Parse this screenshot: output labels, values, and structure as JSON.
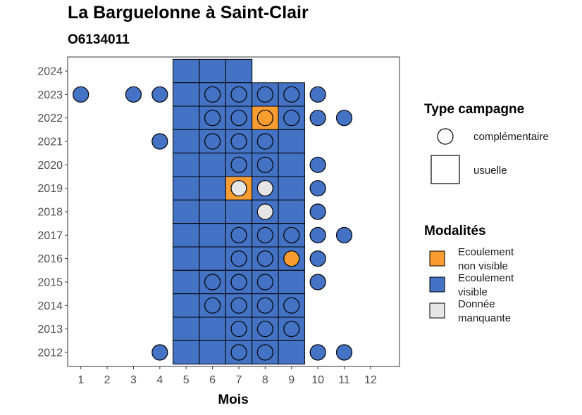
{
  "chart_data": {
    "type": "heatmap",
    "title": "La Barguelonne à Saint-Clair",
    "subtitle": "O6134011",
    "xlabel": "Mois",
    "ylabel": "",
    "x_ticks": [
      1,
      2,
      3,
      4,
      5,
      6,
      7,
      8,
      9,
      10,
      11,
      12
    ],
    "y_ticks": [
      2012,
      2013,
      2014,
      2015,
      2016,
      2017,
      2018,
      2019,
      2020,
      2021,
      2022,
      2023,
      2024
    ],
    "xlim": [
      0.5,
      13.1
    ],
    "ylim": [
      2011.4,
      2024.6
    ],
    "grid": false,
    "colors": {
      "Ecoulement non visible": "#F99D31",
      "Ecoulement visible": "#4472C4",
      "Donnée manquante": "#E6E6E6"
    },
    "legend_campaign": {
      "title": "Type campagne",
      "entries": [
        {
          "label": "complémentaire",
          "shape": "circle"
        },
        {
          "label": "usuelle",
          "shape": "square"
        }
      ]
    },
    "legend_modalities": {
      "title": "Modalités",
      "entries": [
        {
          "label_line1": "Ecoulement",
          "label_line2": "non visible",
          "key": "Ecoulement non visible"
        },
        {
          "label_line1": "Ecoulement",
          "label_line2": "visible",
          "key": "Ecoulement visible"
        },
        {
          "label_line1": "Donnée",
          "label_line2": "manquante",
          "key": "Donnée manquante"
        }
      ]
    },
    "usuelle": [
      {
        "year": 2024,
        "month": 5,
        "status": "Ecoulement visible"
      },
      {
        "year": 2024,
        "month": 6,
        "status": "Ecoulement visible"
      },
      {
        "year": 2024,
        "month": 7,
        "status": "Ecoulement visible"
      },
      {
        "year": 2023,
        "month": 5,
        "status": "Ecoulement visible"
      },
      {
        "year": 2023,
        "month": 6,
        "status": "Ecoulement visible"
      },
      {
        "year": 2023,
        "month": 7,
        "status": "Ecoulement visible"
      },
      {
        "year": 2023,
        "month": 8,
        "status": "Ecoulement visible"
      },
      {
        "year": 2023,
        "month": 9,
        "status": "Ecoulement visible"
      },
      {
        "year": 2022,
        "month": 5,
        "status": "Ecoulement visible"
      },
      {
        "year": 2022,
        "month": 6,
        "status": "Ecoulement visible"
      },
      {
        "year": 2022,
        "month": 7,
        "status": "Ecoulement visible"
      },
      {
        "year": 2022,
        "month": 8,
        "status": "Ecoulement non visible"
      },
      {
        "year": 2022,
        "month": 9,
        "status": "Ecoulement visible"
      },
      {
        "year": 2021,
        "month": 5,
        "status": "Ecoulement visible"
      },
      {
        "year": 2021,
        "month": 6,
        "status": "Ecoulement visible"
      },
      {
        "year": 2021,
        "month": 7,
        "status": "Ecoulement visible"
      },
      {
        "year": 2021,
        "month": 8,
        "status": "Ecoulement visible"
      },
      {
        "year": 2021,
        "month": 9,
        "status": "Ecoulement visible"
      },
      {
        "year": 2020,
        "month": 5,
        "status": "Ecoulement visible"
      },
      {
        "year": 2020,
        "month": 6,
        "status": "Ecoulement visible"
      },
      {
        "year": 2020,
        "month": 7,
        "status": "Ecoulement visible"
      },
      {
        "year": 2020,
        "month": 8,
        "status": "Ecoulement visible"
      },
      {
        "year": 2020,
        "month": 9,
        "status": "Ecoulement visible"
      },
      {
        "year": 2019,
        "month": 5,
        "status": "Ecoulement visible"
      },
      {
        "year": 2019,
        "month": 6,
        "status": "Ecoulement visible"
      },
      {
        "year": 2019,
        "month": 7,
        "status": "Ecoulement non visible"
      },
      {
        "year": 2019,
        "month": 8,
        "status": "Ecoulement visible"
      },
      {
        "year": 2019,
        "month": 9,
        "status": "Ecoulement visible"
      },
      {
        "year": 2018,
        "month": 5,
        "status": "Ecoulement visible"
      },
      {
        "year": 2018,
        "month": 6,
        "status": "Ecoulement visible"
      },
      {
        "year": 2018,
        "month": 7,
        "status": "Ecoulement visible"
      },
      {
        "year": 2018,
        "month": 8,
        "status": "Ecoulement visible"
      },
      {
        "year": 2018,
        "month": 9,
        "status": "Ecoulement visible"
      },
      {
        "year": 2017,
        "month": 5,
        "status": "Ecoulement visible"
      },
      {
        "year": 2017,
        "month": 6,
        "status": "Ecoulement visible"
      },
      {
        "year": 2017,
        "month": 7,
        "status": "Ecoulement visible"
      },
      {
        "year": 2017,
        "month": 8,
        "status": "Ecoulement visible"
      },
      {
        "year": 2017,
        "month": 9,
        "status": "Ecoulement visible"
      },
      {
        "year": 2016,
        "month": 5,
        "status": "Ecoulement visible"
      },
      {
        "year": 2016,
        "month": 6,
        "status": "Ecoulement visible"
      },
      {
        "year": 2016,
        "month": 7,
        "status": "Ecoulement visible"
      },
      {
        "year": 2016,
        "month": 8,
        "status": "Ecoulement visible"
      },
      {
        "year": 2016,
        "month": 9,
        "status": "Ecoulement visible"
      },
      {
        "year": 2015,
        "month": 5,
        "status": "Ecoulement visible"
      },
      {
        "year": 2015,
        "month": 6,
        "status": "Ecoulement visible"
      },
      {
        "year": 2015,
        "month": 7,
        "status": "Ecoulement visible"
      },
      {
        "year": 2015,
        "month": 8,
        "status": "Ecoulement visible"
      },
      {
        "year": 2015,
        "month": 9,
        "status": "Ecoulement visible"
      },
      {
        "year": 2014,
        "month": 5,
        "status": "Ecoulement visible"
      },
      {
        "year": 2014,
        "month": 6,
        "status": "Ecoulement visible"
      },
      {
        "year": 2014,
        "month": 7,
        "status": "Ecoulement visible"
      },
      {
        "year": 2014,
        "month": 8,
        "status": "Ecoulement visible"
      },
      {
        "year": 2014,
        "month": 9,
        "status": "Ecoulement visible"
      },
      {
        "year": 2013,
        "month": 5,
        "status": "Ecoulement visible"
      },
      {
        "year": 2013,
        "month": 6,
        "status": "Ecoulement visible"
      },
      {
        "year": 2013,
        "month": 7,
        "status": "Ecoulement visible"
      },
      {
        "year": 2013,
        "month": 8,
        "status": "Ecoulement visible"
      },
      {
        "year": 2013,
        "month": 9,
        "status": "Ecoulement visible"
      },
      {
        "year": 2012,
        "month": 5,
        "status": "Ecoulement visible"
      },
      {
        "year": 2012,
        "month": 6,
        "status": "Ecoulement visible"
      },
      {
        "year": 2012,
        "month": 7,
        "status": "Ecoulement visible"
      },
      {
        "year": 2012,
        "month": 8,
        "status": "Ecoulement visible"
      },
      {
        "year": 2012,
        "month": 9,
        "status": "Ecoulement visible"
      }
    ],
    "complementaire": [
      {
        "year": 2023,
        "month": 1,
        "status": "Ecoulement visible"
      },
      {
        "year": 2023,
        "month": 3,
        "status": "Ecoulement visible"
      },
      {
        "year": 2023,
        "month": 4,
        "status": "Ecoulement visible"
      },
      {
        "year": 2023,
        "month": 6,
        "status": "Ecoulement visible"
      },
      {
        "year": 2023,
        "month": 7,
        "status": "Ecoulement visible"
      },
      {
        "year": 2023,
        "month": 8,
        "status": "Ecoulement visible"
      },
      {
        "year": 2023,
        "month": 9,
        "status": "Ecoulement visible"
      },
      {
        "year": 2023,
        "month": 10,
        "status": "Ecoulement visible"
      },
      {
        "year": 2022,
        "month": 6,
        "status": "Ecoulement visible"
      },
      {
        "year": 2022,
        "month": 7,
        "status": "Ecoulement visible"
      },
      {
        "year": 2022,
        "month": 8,
        "status": "Ecoulement non visible"
      },
      {
        "year": 2022,
        "month": 9,
        "status": "Ecoulement visible"
      },
      {
        "year": 2022,
        "month": 10,
        "status": "Ecoulement visible"
      },
      {
        "year": 2022,
        "month": 11,
        "status": "Ecoulement visible"
      },
      {
        "year": 2021,
        "month": 4,
        "status": "Ecoulement visible"
      },
      {
        "year": 2021,
        "month": 6,
        "status": "Ecoulement visible"
      },
      {
        "year": 2021,
        "month": 7,
        "status": "Ecoulement visible"
      },
      {
        "year": 2021,
        "month": 8,
        "status": "Ecoulement visible"
      },
      {
        "year": 2020,
        "month": 7,
        "status": "Ecoulement visible"
      },
      {
        "year": 2020,
        "month": 8,
        "status": "Ecoulement visible"
      },
      {
        "year": 2020,
        "month": 10,
        "status": "Ecoulement visible"
      },
      {
        "year": 2019,
        "month": 7,
        "status": "Donnée manquante"
      },
      {
        "year": 2019,
        "month": 8,
        "status": "Donnée manquante"
      },
      {
        "year": 2019,
        "month": 10,
        "status": "Ecoulement visible"
      },
      {
        "year": 2018,
        "month": 8,
        "status": "Donnée manquante"
      },
      {
        "year": 2018,
        "month": 10,
        "status": "Ecoulement visible"
      },
      {
        "year": 2017,
        "month": 7,
        "status": "Ecoulement visible"
      },
      {
        "year": 2017,
        "month": 8,
        "status": "Ecoulement visible"
      },
      {
        "year": 2017,
        "month": 9,
        "status": "Ecoulement visible"
      },
      {
        "year": 2017,
        "month": 10,
        "status": "Ecoulement visible"
      },
      {
        "year": 2017,
        "month": 11,
        "status": "Ecoulement visible"
      },
      {
        "year": 2016,
        "month": 7,
        "status": "Ecoulement visible"
      },
      {
        "year": 2016,
        "month": 8,
        "status": "Ecoulement visible"
      },
      {
        "year": 2016,
        "month": 9,
        "status": "Ecoulement non visible"
      },
      {
        "year": 2016,
        "month": 10,
        "status": "Ecoulement visible"
      },
      {
        "year": 2015,
        "month": 6,
        "status": "Ecoulement visible"
      },
      {
        "year": 2015,
        "month": 7,
        "status": "Ecoulement visible"
      },
      {
        "year": 2015,
        "month": 8,
        "status": "Ecoulement visible"
      },
      {
        "year": 2015,
        "month": 10,
        "status": "Ecoulement visible"
      },
      {
        "year": 2014,
        "month": 6,
        "status": "Ecoulement visible"
      },
      {
        "year": 2014,
        "month": 7,
        "status": "Ecoulement visible"
      },
      {
        "year": 2014,
        "month": 8,
        "status": "Ecoulement visible"
      },
      {
        "year": 2014,
        "month": 9,
        "status": "Ecoulement visible"
      },
      {
        "year": 2013,
        "month": 7,
        "status": "Ecoulement visible"
      },
      {
        "year": 2013,
        "month": 8,
        "status": "Ecoulement visible"
      },
      {
        "year": 2013,
        "month": 9,
        "status": "Ecoulement visible"
      },
      {
        "year": 2012,
        "month": 4,
        "status": "Ecoulement visible"
      },
      {
        "year": 2012,
        "month": 7,
        "status": "Ecoulement visible"
      },
      {
        "year": 2012,
        "month": 8,
        "status": "Ecoulement visible"
      },
      {
        "year": 2012,
        "month": 10,
        "status": "Ecoulement visible"
      },
      {
        "year": 2012,
        "month": 11,
        "status": "Ecoulement visible"
      }
    ]
  }
}
